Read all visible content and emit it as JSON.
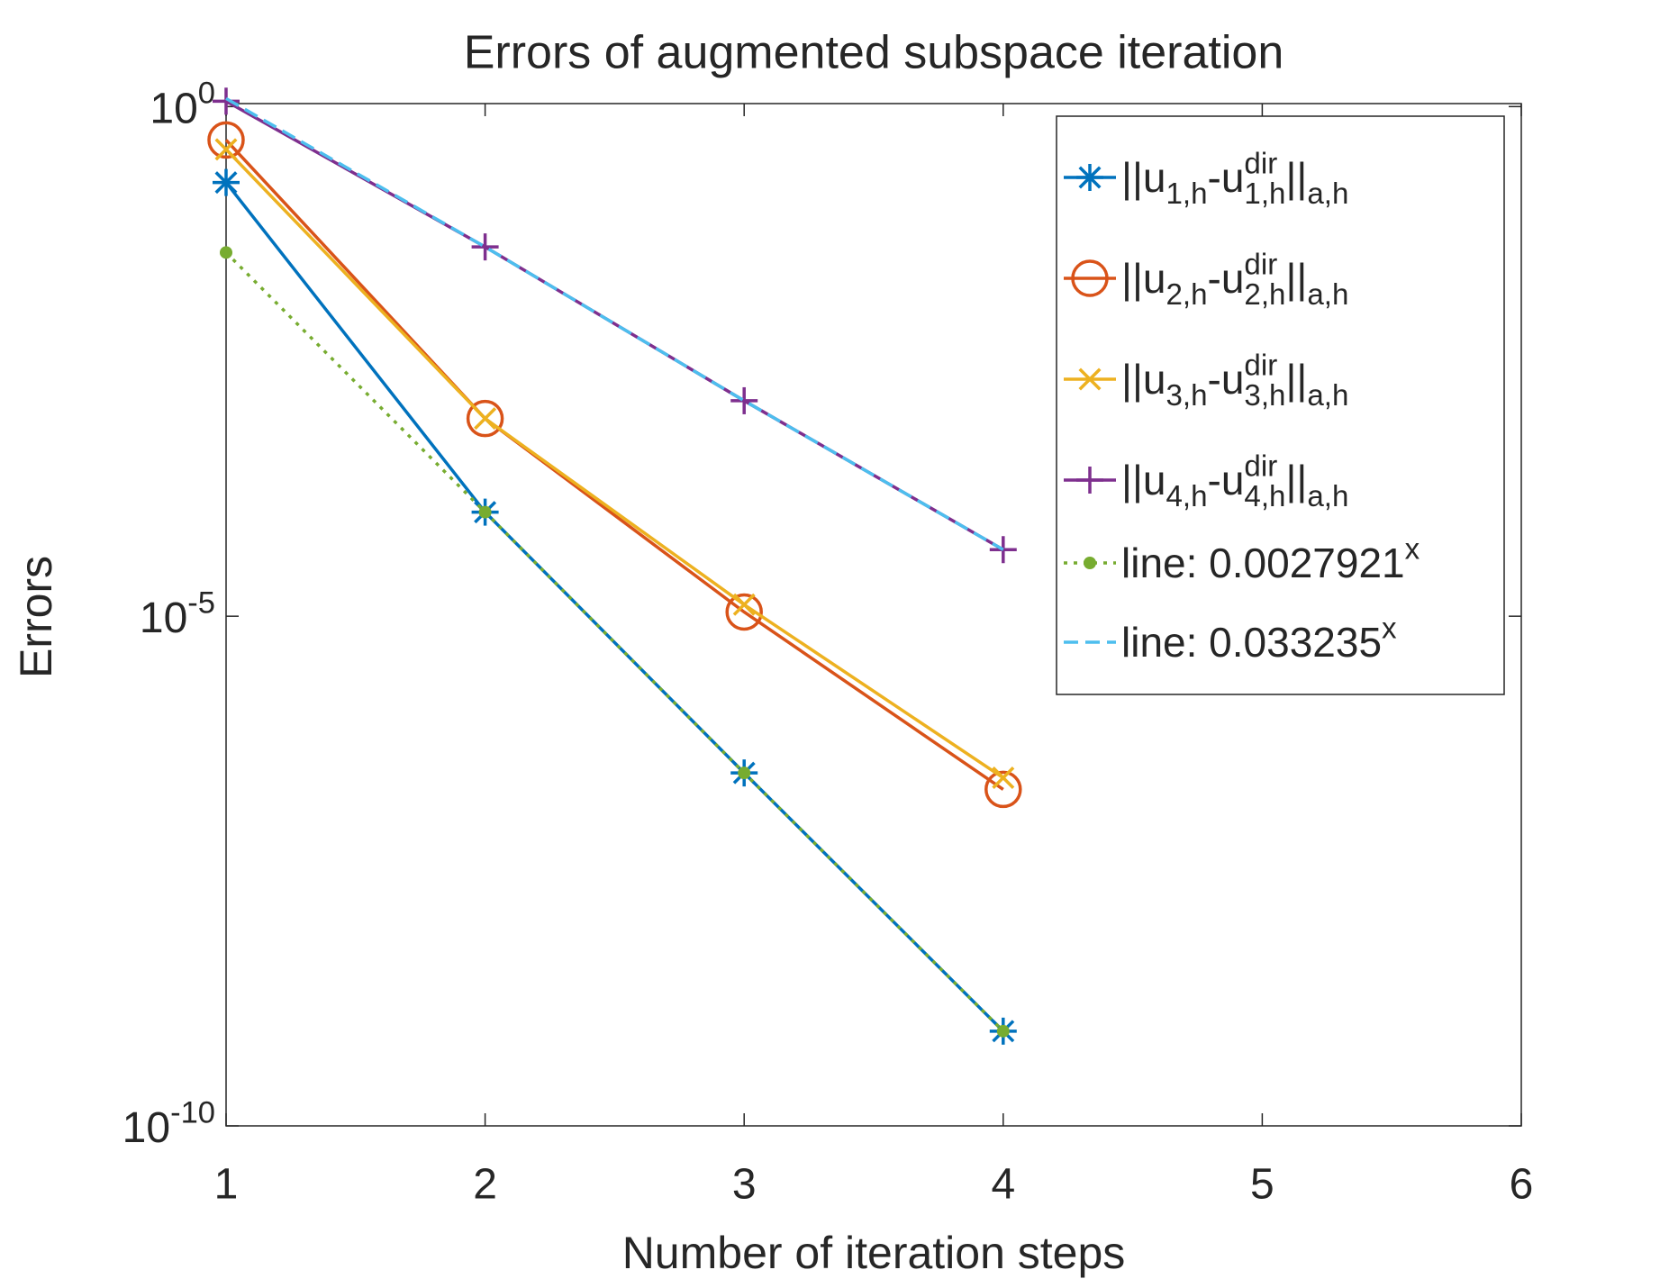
{
  "chart_data": {
    "type": "line",
    "title": "Errors of augmented subspace iteration",
    "x_label": "Number of iteration steps",
    "y_label": "Errors",
    "log_y": true,
    "legend_position": "top-right",
    "x": [
      1,
      2,
      3,
      4
    ],
    "xlim": [
      1,
      6
    ],
    "xticks": [
      1,
      2,
      3,
      4,
      5,
      6
    ],
    "ylim": [
      1e-10,
      1.07
    ],
    "yticks": [
      {
        "value": 1,
        "label": "10^{0}"
      },
      {
        "value": 1e-05,
        "label": "10^{-5}"
      },
      {
        "value": 1e-10,
        "label": "10^{-10}"
      }
    ],
    "series": [
      {
        "name": "||u_{1,h}-u^{dir}_{1,h}||_{a,h}",
        "color": "#0072BD",
        "marker": "star",
        "dash": "solid",
        "values": [
          0.18,
          0.000105,
          2.9e-07,
          8.5e-10
        ]
      },
      {
        "name": "||u_{2,h}-u^{dir}_{2,h}||_{a,h}",
        "color": "#D95319",
        "marker": "circle",
        "dash": "solid",
        "values": [
          0.47,
          0.00087,
          1.1e-05,
          2e-07
        ]
      },
      {
        "name": "||u_{3,h}-u^{dir}_{3,h}||_{a,h}",
        "color": "#EDB120",
        "marker": "x",
        "dash": "solid",
        "values": [
          0.38,
          0.00087,
          1.3e-05,
          2.6e-07
        ]
      },
      {
        "name": "||u_{4,h}-u^{dir}_{4,h}||_{a,h}",
        "color": "#7E2F8E",
        "marker": "plus",
        "dash": "solid",
        "values": [
          1.13,
          0.042,
          0.0013,
          4.5e-05
        ]
      },
      {
        "name": "line: 0.0027921^{x}",
        "color": "#77AC30",
        "marker": "dot",
        "dash": "dotted",
        "values": [
          0.037,
          0.000105,
          2.9e-07,
          8.5e-10
        ]
      },
      {
        "name": "line: 0.033235^{x}",
        "color": "#4DBEEE",
        "marker": "none",
        "dash": "dashed",
        "values": [
          1.2,
          0.042,
          0.0013,
          4.5e-05
        ]
      }
    ]
  }
}
